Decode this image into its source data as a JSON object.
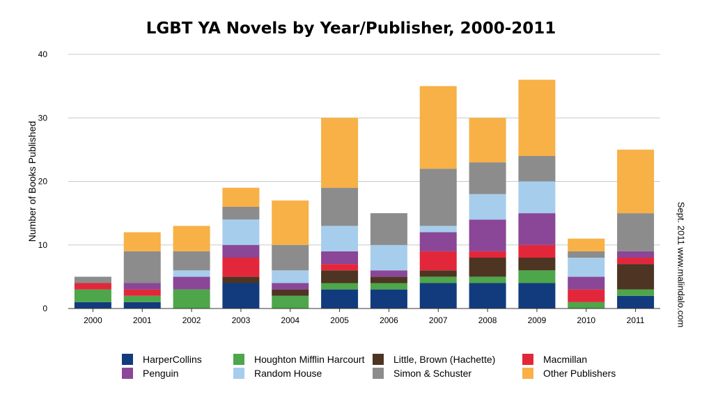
{
  "chart_data": {
    "type": "bar",
    "stacked": true,
    "title": "LGBT YA Novels by Year/Publisher, 2000-2011",
    "xlabel": "",
    "ylabel": "Number of Books Published",
    "ylim": [
      0,
      40
    ],
    "yticks": [
      "0",
      "10",
      "20",
      "30",
      "40"
    ],
    "grid": true,
    "legend_position": "bottom",
    "categories": [
      "2000",
      "2001",
      "2002",
      "2003",
      "2004",
      "2005",
      "2006",
      "2007",
      "2008",
      "2009",
      "2010",
      "2011"
    ],
    "series": [
      {
        "name": "HarperCollins",
        "color": "#123b7e",
        "values": [
          1,
          1,
          0,
          4,
          0,
          3,
          3,
          4,
          4,
          4,
          0,
          2
        ]
      },
      {
        "name": "Houghton Mifflin Harcourt",
        "color": "#4ea64a",
        "values": [
          2,
          1,
          3,
          0,
          2,
          1,
          1,
          1,
          1,
          2,
          1,
          1
        ]
      },
      {
        "name": "Little, Brown (Hachette)",
        "color": "#4e3422",
        "values": [
          0,
          0,
          0,
          1,
          1,
          2,
          1,
          1,
          3,
          2,
          0,
          4
        ]
      },
      {
        "name": "Macmillan",
        "color": "#e3273a",
        "values": [
          1,
          1,
          0,
          3,
          0,
          1,
          0,
          3,
          1,
          2,
          2,
          1
        ]
      },
      {
        "name": "Penguin",
        "color": "#8a4697",
        "values": [
          0,
          1,
          2,
          2,
          1,
          2,
          1,
          3,
          5,
          5,
          2,
          1
        ]
      },
      {
        "name": "Random House",
        "color": "#a6cdec",
        "values": [
          0,
          0,
          1,
          4,
          2,
          4,
          4,
          1,
          4,
          5,
          3,
          0
        ]
      },
      {
        "name": "Simon & Schuster",
        "color": "#8c8c8c",
        "values": [
          1,
          5,
          3,
          2,
          4,
          6,
          5,
          9,
          5,
          4,
          1,
          6
        ]
      },
      {
        "name": "Other Publishers",
        "color": "#f7b147",
        "values": [
          0,
          3,
          4,
          3,
          7,
          11,
          0,
          13,
          7,
          12,
          2,
          10
        ]
      }
    ]
  },
  "credit": "Sept. 2011 www.malindalo.com"
}
